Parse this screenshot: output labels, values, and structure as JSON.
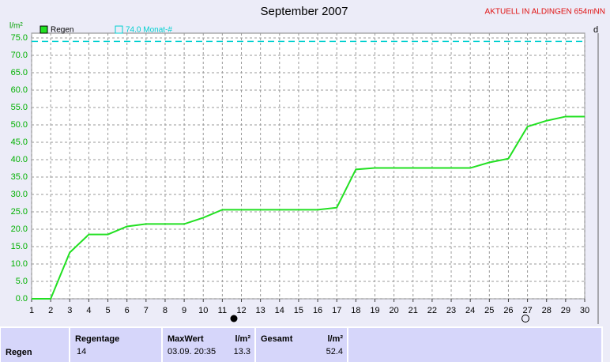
{
  "chart_data": {
    "type": "line",
    "title": "September 2007",
    "header_right": "AKTUELL IN ALDINGEN 654mNN",
    "y_label": "l/m²",
    "right_label": "d",
    "x": [
      1,
      2,
      3,
      4,
      5,
      6,
      7,
      8,
      9,
      10,
      11,
      12,
      13,
      14,
      15,
      16,
      17,
      18,
      19,
      20,
      21,
      22,
      23,
      24,
      25,
      26,
      27,
      28,
      29,
      30
    ],
    "xlim": [
      1,
      30
    ],
    "xticks": [
      1,
      2,
      3,
      4,
      5,
      6,
      7,
      8,
      9,
      10,
      11,
      12,
      13,
      14,
      15,
      16,
      17,
      18,
      19,
      20,
      21,
      22,
      23,
      24,
      25,
      26,
      27,
      28,
      29,
      30
    ],
    "ylim": [
      0,
      75
    ],
    "yticks": [
      {
        "value": 0,
        "label": "0.0"
      },
      {
        "value": 5,
        "label": "5.0"
      },
      {
        "value": 10,
        "label": "10.0"
      },
      {
        "value": 15,
        "label": "15.0"
      },
      {
        "value": 20,
        "label": "20.0"
      },
      {
        "value": 25,
        "label": "25.0"
      },
      {
        "value": 30,
        "label": "30.0"
      },
      {
        "value": 35,
        "label": "35.0"
      },
      {
        "value": 40,
        "label": "40.0"
      },
      {
        "value": 45,
        "label": "45.0"
      },
      {
        "value": 50,
        "label": "50.0"
      },
      {
        "value": 55,
        "label": "55.0"
      },
      {
        "value": 60,
        "label": "60.0"
      },
      {
        "value": 65,
        "label": "65.0"
      },
      {
        "value": 70,
        "label": "70.0"
      },
      {
        "value": 75,
        "label": "75.0"
      }
    ],
    "grid": true,
    "series": [
      {
        "name": "Regen",
        "color": "#22e022",
        "values": [
          0,
          0,
          13.3,
          18.5,
          18.5,
          20.8,
          21.5,
          21.5,
          21.5,
          23.3,
          25.6,
          25.6,
          25.6,
          25.6,
          25.6,
          25.6,
          26.2,
          37.2,
          37.6,
          37.6,
          37.6,
          37.6,
          37.6,
          37.6,
          39.2,
          40.3,
          49.5,
          51.2,
          52.4,
          52.4
        ]
      }
    ],
    "reference": {
      "name": "74.0 Monat-#",
      "value": 74,
      "color": "#00d0d0"
    }
  },
  "summary": {
    "row_label": "Regen",
    "regentage_label": "Regentage",
    "regentage": 14,
    "maxwert_label": "MaxWert",
    "maxwert_time": "03.09. 20:35",
    "maxwert_unit": "l/m²",
    "maxwert": 13.3,
    "gesamt_label": "Gesamt",
    "gesamt_unit": "l/m²",
    "gesamt": 52.4
  }
}
